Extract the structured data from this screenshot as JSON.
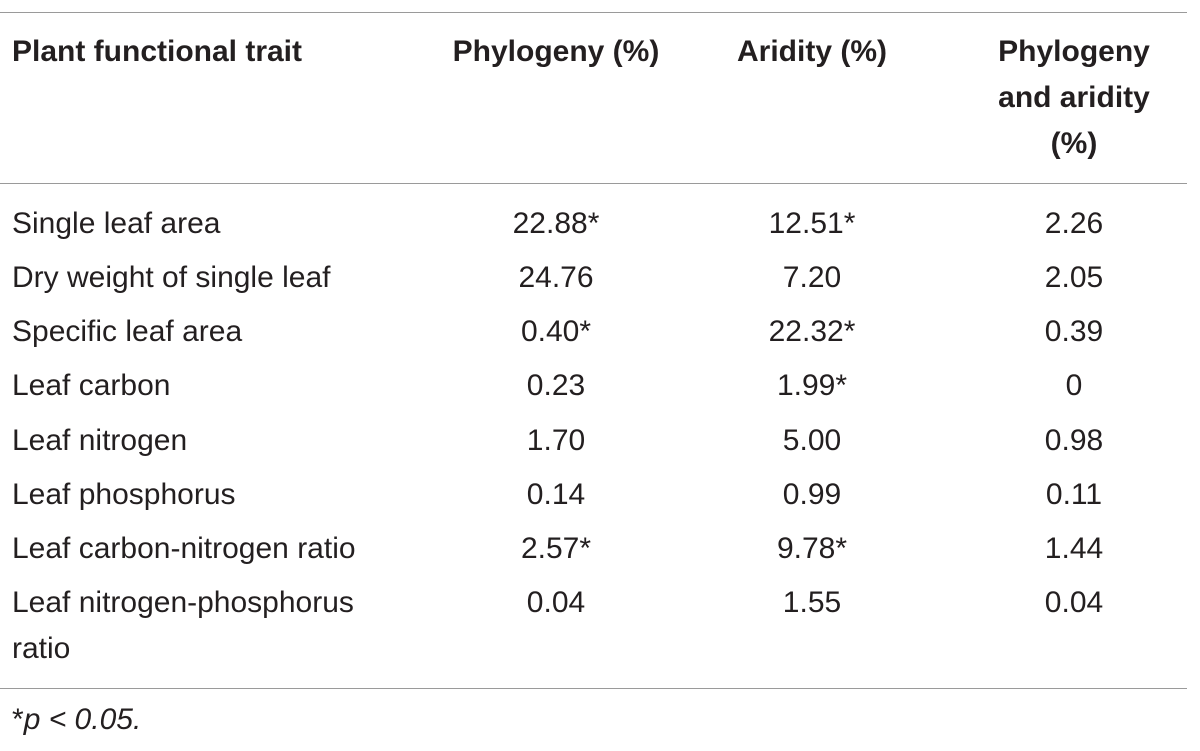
{
  "header": {
    "col0": "Plant functional trait",
    "col1": "Phylogeny (%)",
    "col2": "Aridity (%)",
    "col3_line1": "Phylogeny",
    "col3_line2": "and aridity",
    "col3_line3": "(%)"
  },
  "rows": [
    {
      "trait": "Single leaf area",
      "phylogeny": "22.88*",
      "aridity": "12.51*",
      "both": "2.26"
    },
    {
      "trait": "Dry weight of single leaf",
      "phylogeny": "24.76",
      "aridity": "7.20",
      "both": "2.05"
    },
    {
      "trait": "Specific leaf area",
      "phylogeny": "0.40*",
      "aridity": "22.32*",
      "both": "0.39"
    },
    {
      "trait": "Leaf carbon",
      "phylogeny": "0.23",
      "aridity": "1.99*",
      "both": "0"
    },
    {
      "trait": "Leaf nitrogen",
      "phylogeny": "1.70",
      "aridity": "5.00",
      "both": "0.98"
    },
    {
      "trait": "Leaf phosphorus",
      "phylogeny": "0.14",
      "aridity": "0.99",
      "both": "0.11"
    },
    {
      "trait": "Leaf carbon-nitrogen ratio",
      "phylogeny": "2.57*",
      "aridity": "9.78*",
      "both": "1.44"
    },
    {
      "trait_line1": "Leaf nitrogen-phosphorus",
      "trait_line2": "ratio",
      "phylogeny": "0.04",
      "aridity": "1.55",
      "both": "0.04"
    }
  ],
  "footnote": {
    "star": "*",
    "text": "p < 0.05."
  }
}
